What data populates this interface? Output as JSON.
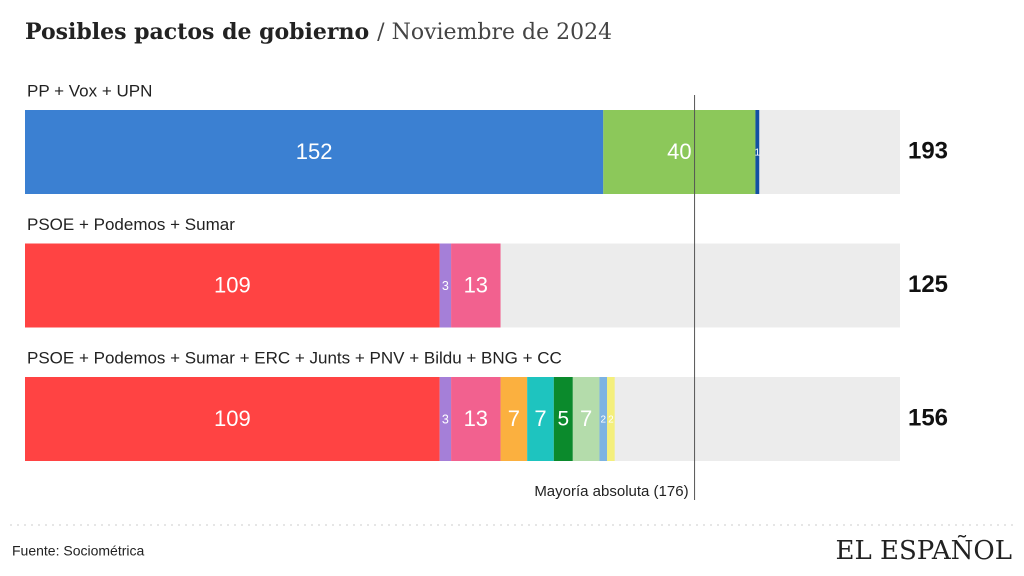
{
  "chart_data": {
    "type": "stacked-bar-h",
    "title": "Posibles pactos de gobierno",
    "subtitle": "/ Noviembre de 2024",
    "xlim": [
      0,
      230
    ],
    "rows": [
      {
        "label": "PP + Vox + UPN",
        "total": 193,
        "segments": [
          {
            "value": 152,
            "color": "#3b80d2"
          },
          {
            "value": 40,
            "color": "#8cc85a"
          },
          {
            "value": 1,
            "color": "#1350a3"
          }
        ]
      },
      {
        "label": "PSOE + Podemos + Sumar",
        "total": 125,
        "segments": [
          {
            "value": 109,
            "color": "#ff4343"
          },
          {
            "value": 3,
            "color": "#a57fd8"
          },
          {
            "value": 13,
            "color": "#f2618f"
          }
        ]
      },
      {
        "label": "PSOE + Podemos + Sumar + ERC + Junts + PNV + Bildu + BNG + CC",
        "total": 156,
        "segments": [
          {
            "value": 109,
            "color": "#ff4343"
          },
          {
            "value": 3,
            "color": "#a57fd8"
          },
          {
            "value": 13,
            "color": "#f2618f"
          },
          {
            "value": 7,
            "color": "#fbb03f"
          },
          {
            "value": 7,
            "color": "#1ec4bf"
          },
          {
            "value": 5,
            "color": "#0b8a2c"
          },
          {
            "value": 7,
            "color": "#b4dcab"
          },
          {
            "value": 2,
            "color": "#7db3e2"
          },
          {
            "value": 2,
            "color": "#f4ef7c"
          }
        ]
      }
    ],
    "reference": {
      "value": 176,
      "label": "Mayoría absoluta (176)"
    },
    "source": "Fuente: Sociométrica",
    "logo": "EL ESPAÑOL"
  }
}
